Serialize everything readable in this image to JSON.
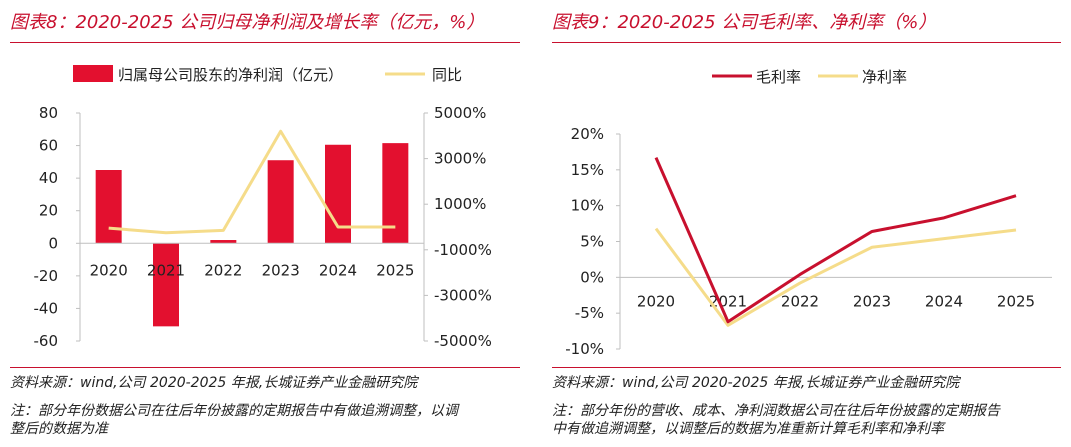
{
  "left_panel": {
    "title": "图表8：2020-2025 公司归母净利润及增长率（亿元，%）",
    "source": "资料来源：wind,公司 2020-2025 年报,长城证券产业金融研究院",
    "note_line1": "注：部分年份数据公司在往后年份披露的定期报告中有做追溯调整，以调",
    "note_line2": "整后的数据为准"
  },
  "right_panel": {
    "title": "图表9：2020-2025 公司毛利率、净利率（%）",
    "source": "资料来源：wind,公司 2020-2025 年报,长城证券产业金融研究院",
    "note_line1": "注：部分年份的营收、成本、净利润数据公司在往后年份披露的定期报告",
    "note_line2": "中有做追溯调整，以调整后的数据为准重新计算毛利率和净利率"
  },
  "colors": {
    "accent": "#c8102e",
    "bar": "#e3102f",
    "line_yellow": "#f5dc8a",
    "grid_axis": "#bfbfbf"
  },
  "chart_data": [
    {
      "type": "bar",
      "categories": [
        "2020",
        "2021",
        "2022",
        "2023",
        "2024",
        "2025"
      ],
      "series": [
        {
          "name": "归属母公司股东的净利润（亿元）",
          "type": "bar",
          "axis": "left",
          "values": [
            45,
            -51,
            2,
            51,
            60.5,
            61.5
          ]
        },
        {
          "name": "同比",
          "type": "line",
          "axis": "right",
          "values": [
            -50,
            -250,
            -150,
            4200,
            0,
            0
          ]
        }
      ],
      "y_left": {
        "ylim": [
          -60,
          80
        ],
        "ticks": [
          -60,
          -40,
          -20,
          0,
          20,
          40,
          60,
          80
        ],
        "tick_labels": [
          "-60",
          "-40",
          "-20",
          "0",
          "20",
          "40",
          "60",
          "80"
        ]
      },
      "y_right": {
        "ylim": [
          -5000,
          5000
        ],
        "ticks": [
          -5000,
          -3000,
          -1000,
          1000,
          3000,
          5000
        ],
        "tick_labels": [
          "-5000%",
          "-3000%",
          "-1000%",
          "1000%",
          "3000%",
          "5000%"
        ]
      },
      "legend": [
        "归属母公司股东的净利润（亿元）",
        "同比"
      ],
      "legend_position": "top"
    },
    {
      "type": "line",
      "categories": [
        "2020",
        "2021",
        "2022",
        "2023",
        "2024",
        "2025"
      ],
      "series": [
        {
          "name": "毛利率",
          "values": [
            16.7,
            -6.2,
            0.4,
            6.4,
            8.3,
            11.4
          ]
        },
        {
          "name": "净利率",
          "values": [
            6.8,
            -6.7,
            -0.8,
            4.2,
            5.4,
            6.6
          ]
        }
      ],
      "ylim": [
        -10,
        20
      ],
      "ticks": [
        -10,
        -5,
        0,
        5,
        10,
        15,
        20
      ],
      "tick_labels": [
        "-10%",
        "-5%",
        "0%",
        "5%",
        "10%",
        "15%",
        "20%"
      ],
      "legend": [
        "毛利率",
        "净利率"
      ],
      "legend_position": "top"
    }
  ]
}
